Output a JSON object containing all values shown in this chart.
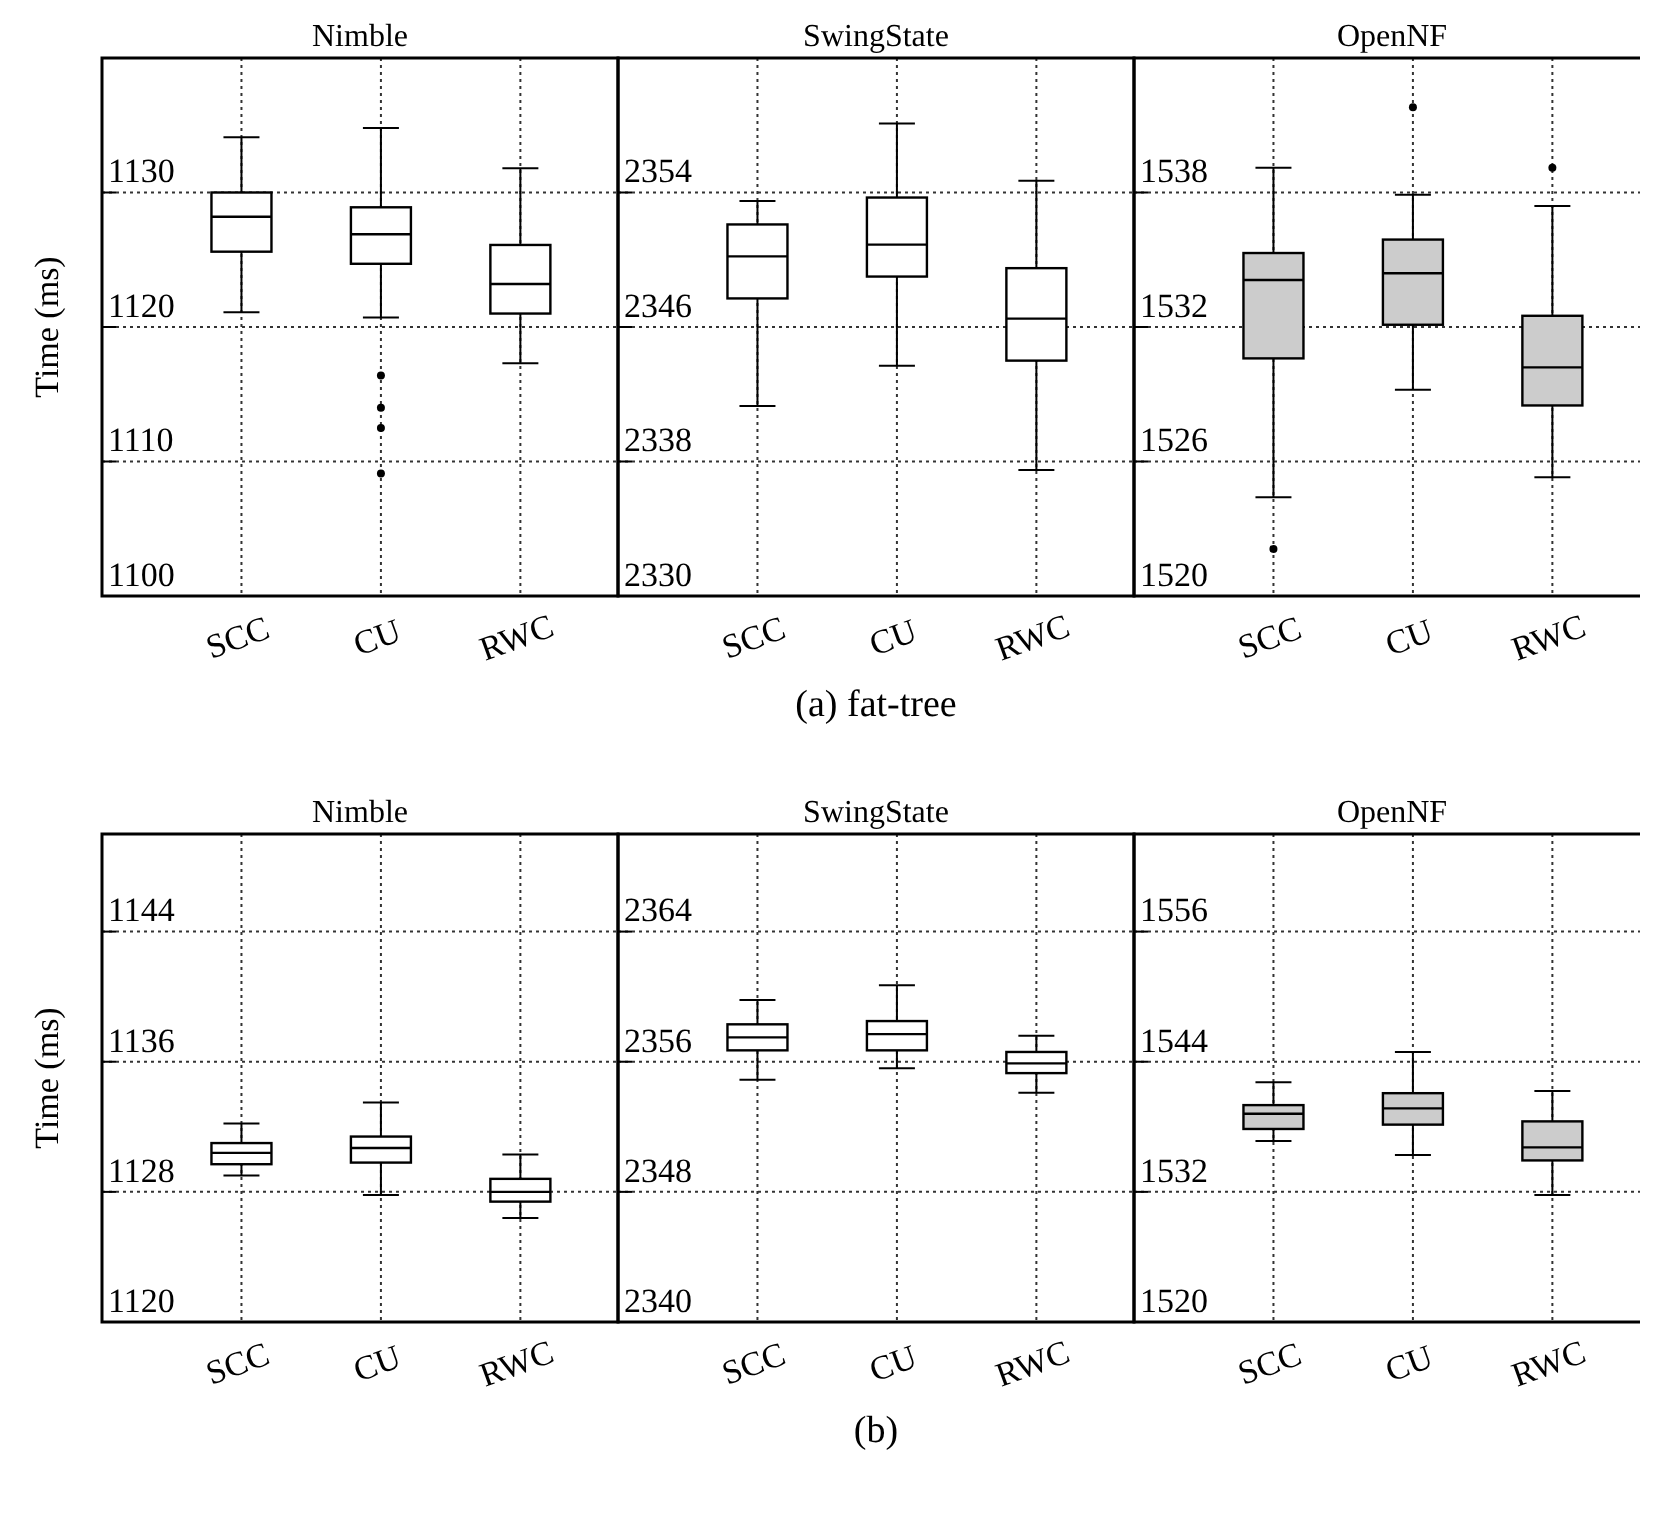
{
  "chart_data": [
    {
      "type": "box",
      "title": "Nimble",
      "ylabel": "Time (ms)",
      "categories": [
        "SCC",
        "CU",
        "RWC"
      ],
      "ylim": [
        1100,
        1140
      ],
      "yticks": [
        1100,
        1110,
        1120,
        1130
      ],
      "grid": true,
      "series": [
        {
          "color": "#ffffff",
          "boxes": [
            {
              "low": 1121.1,
              "q1": 1125.6,
              "median": 1128.2,
              "q3": 1130,
              "high": 1134.1
            },
            {
              "low": 1120.7,
              "q1": 1124.7,
              "median": 1126.9,
              "q3": 1128.9,
              "high": 1134.8,
              "outliers": [
                1116.4,
                1114,
                1112.5,
                1109.1
              ]
            },
            {
              "low": 1117.3,
              "q1": 1121,
              "median": 1123.2,
              "q3": 1126.1,
              "high": 1131.8
            }
          ]
        }
      ]
    },
    {
      "type": "box",
      "title": "SwingState",
      "categories": [
        "SCC",
        "CU",
        "RWC"
      ],
      "ylim": [
        2330,
        2362
      ],
      "yticks": [
        2330,
        2338,
        2346,
        2354
      ],
      "grid": true,
      "annotations": [
        "(a) fat-tree"
      ],
      "series": [
        {
          "color": "#ffffff",
          "boxes": [
            {
              "low": 2341.3,
              "q1": 2347.7,
              "median": 2350.2,
              "q3": 2352.1,
              "high": 2353.5
            },
            {
              "low": 2343.7,
              "q1": 2349,
              "median": 2350.9,
              "q3": 2353.7,
              "high": 2358.1
            },
            {
              "low": 2337.5,
              "q1": 2344,
              "median": 2346.5,
              "q3": 2349.5,
              "high": 2354.7
            }
          ]
        }
      ]
    },
    {
      "type": "box",
      "title": "OpenNF",
      "categories": [
        "SCC",
        "CU",
        "RWC"
      ],
      "ylim": [
        1520,
        1544
      ],
      "yticks": [
        1520,
        1526,
        1532,
        1538
      ],
      "grid": true,
      "series": [
        {
          "color": "#cccccc",
          "boxes": [
            {
              "low": 1524.4,
              "q1": 1530.6,
              "median": 1534.1,
              "q3": 1535.3,
              "high": 1539.1,
              "outliers": [
                1522.1
              ]
            },
            {
              "low": 1529.2,
              "q1": 1532.1,
              "median": 1534.4,
              "q3": 1535.9,
              "high": 1537.9,
              "outliers": [
                1541.8
              ]
            },
            {
              "low": 1525.3,
              "q1": 1528.5,
              "median": 1530.2,
              "q3": 1532.5,
              "high": 1537.4,
              "outliers": [
                1539.1
              ]
            }
          ]
        }
      ]
    },
    {
      "type": "box",
      "title": "Nimble",
      "ylabel": "Time (ms)",
      "categories": [
        "SCC",
        "CU",
        "RWC"
      ],
      "ylim": [
        1120,
        1150
      ],
      "yticks": [
        1120,
        1128,
        1136,
        1144
      ],
      "grid": true,
      "series": [
        {
          "color": "#ffffff",
          "boxes": [
            {
              "low": 1129,
              "q1": 1129.7,
              "median": 1130.4,
              "q3": 1131,
              "high": 1132.2
            },
            {
              "low": 1127.8,
              "q1": 1129.8,
              "median": 1130.7,
              "q3": 1131.4,
              "high": 1133.5
            },
            {
              "low": 1126.4,
              "q1": 1127.4,
              "median": 1128,
              "q3": 1128.8,
              "high": 1130.3
            }
          ]
        }
      ]
    },
    {
      "type": "box",
      "title": "SwingState",
      "categories": [
        "SCC",
        "CU",
        "RWC"
      ],
      "ylim": [
        2340,
        2370
      ],
      "yticks": [
        2340,
        2348,
        2356,
        2364
      ],
      "grid": true,
      "annotations": [
        "(b)"
      ],
      "series": [
        {
          "color": "#ffffff",
          "boxes": [
            {
              "low": 2354.9,
              "q1": 2356.7,
              "median": 2357.5,
              "q3": 2358.3,
              "high": 2359.8
            },
            {
              "low": 2355.6,
              "q1": 2356.7,
              "median": 2357.7,
              "q3": 2358.5,
              "high": 2360.7
            },
            {
              "low": 2354.1,
              "q1": 2355.3,
              "median": 2355.9,
              "q3": 2356.6,
              "high": 2357.6
            }
          ]
        }
      ]
    },
    {
      "type": "box",
      "title": "OpenNF",
      "categories": [
        "SCC",
        "CU",
        "RWC"
      ],
      "ylim": [
        1520,
        1565
      ],
      "yticks": [
        1520,
        1532,
        1544,
        1556
      ],
      "grid": true,
      "series": [
        {
          "color": "#cccccc",
          "boxes": [
            {
              "low": 1536.7,
              "q1": 1537.8,
              "median": 1539.2,
              "q3": 1540,
              "high": 1542.1
            },
            {
              "low": 1535.4,
              "q1": 1538.2,
              "median": 1539.7,
              "q3": 1541.1,
              "high": 1544.9
            },
            {
              "low": 1531.7,
              "q1": 1534.9,
              "median": 1536.1,
              "q3": 1538.5,
              "high": 1541.3
            }
          ]
        }
      ]
    }
  ]
}
